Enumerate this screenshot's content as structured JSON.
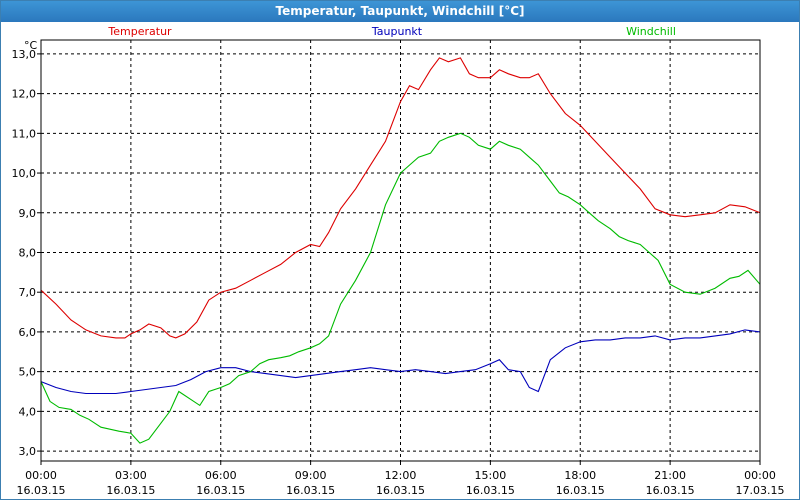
{
  "window": {
    "title": "Temperatur, Taupunkt, Windchill [°C]"
  },
  "chart_data": {
    "type": "line",
    "title": "Temperatur, Taupunkt, Windchill [°C]",
    "ylabel": "°C",
    "ylim": [
      2.75,
      13.35
    ],
    "xlim": [
      0,
      24
    ],
    "grid": true,
    "yticks": [
      "3,0",
      "4,0",
      "5,0",
      "6,0",
      "7,0",
      "8,0",
      "9,0",
      "10,0",
      "11,0",
      "12,0",
      "13,0"
    ],
    "xticks": [
      {
        "time": "00:00",
        "date": "16.03.15",
        "x": 0
      },
      {
        "time": "03:00",
        "date": "16.03.15",
        "x": 3
      },
      {
        "time": "06:00",
        "date": "16.03.15",
        "x": 6
      },
      {
        "time": "09:00",
        "date": "16.03.15",
        "x": 9
      },
      {
        "time": "12:00",
        "date": "16.03.15",
        "x": 12
      },
      {
        "time": "15:00",
        "date": "16.03.15",
        "x": 15
      },
      {
        "time": "18:00",
        "date": "16.03.15",
        "x": 18
      },
      {
        "time": "21:00",
        "date": "16.03.15",
        "x": 21
      },
      {
        "time": "00:00",
        "date": "17.03.15",
        "x": 24
      }
    ],
    "series": [
      {
        "name": "Temperatur",
        "color": "#dd0000",
        "x": [
          0,
          0.5,
          1,
          1.5,
          2,
          2.5,
          2.8,
          3,
          3.3,
          3.6,
          4,
          4.3,
          4.5,
          4.8,
          5.2,
          5.6,
          6,
          6.5,
          7,
          7.5,
          8,
          8.5,
          9,
          9.3,
          9.6,
          10,
          10.5,
          11,
          11.5,
          12,
          12.3,
          12.6,
          13,
          13.3,
          13.6,
          14,
          14.3,
          14.6,
          15,
          15.3,
          15.6,
          16,
          16.3,
          16.6,
          17,
          17.5,
          18,
          18.5,
          19,
          19.5,
          20,
          20.5,
          21,
          21.5,
          22,
          22.5,
          23,
          23.5,
          24
        ],
        "values": [
          7.05,
          6.7,
          6.3,
          6.05,
          5.9,
          5.85,
          5.85,
          5.95,
          6.05,
          6.2,
          6.1,
          5.9,
          5.85,
          5.95,
          6.25,
          6.8,
          7.0,
          7.1,
          7.3,
          7.5,
          7.7,
          8.0,
          8.2,
          8.15,
          8.5,
          9.1,
          9.6,
          10.2,
          10.8,
          11.8,
          12.2,
          12.1,
          12.6,
          12.9,
          12.8,
          12.9,
          12.5,
          12.4,
          12.4,
          12.6,
          12.5,
          12.4,
          12.4,
          12.5,
          12.0,
          11.5,
          11.2,
          10.8,
          10.4,
          10.0,
          9.6,
          9.1,
          8.95,
          8.9,
          8.95,
          9.0,
          9.2,
          9.15,
          9.0
        ]
      },
      {
        "name": "Taupunkt",
        "color": "#0000bb",
        "x": [
          0,
          0.5,
          1,
          1.5,
          2,
          2.5,
          3,
          3.5,
          4,
          4.5,
          5,
          5.5,
          6,
          6.5,
          7,
          7.5,
          8,
          8.5,
          9,
          9.5,
          10,
          10.5,
          11,
          11.5,
          12,
          12.5,
          13,
          13.5,
          14,
          14.5,
          15,
          15.3,
          15.6,
          16,
          16.3,
          16.6,
          17,
          17.5,
          18,
          18.5,
          19,
          19.5,
          20,
          20.5,
          21,
          21.5,
          22,
          22.5,
          23,
          23.5,
          24
        ],
        "values": [
          4.75,
          4.6,
          4.5,
          4.45,
          4.45,
          4.45,
          4.5,
          4.55,
          4.6,
          4.65,
          4.8,
          5.0,
          5.1,
          5.1,
          5.0,
          4.95,
          4.9,
          4.85,
          4.9,
          4.95,
          5.0,
          5.05,
          5.1,
          5.05,
          5.0,
          5.05,
          5.0,
          4.95,
          5.0,
          5.05,
          5.2,
          5.3,
          5.05,
          5.0,
          4.6,
          4.5,
          5.3,
          5.6,
          5.75,
          5.8,
          5.8,
          5.85,
          5.85,
          5.9,
          5.8,
          5.85,
          5.85,
          5.9,
          5.95,
          6.05,
          6.0
        ]
      },
      {
        "name": "Windchill",
        "color": "#00bb00",
        "x": [
          0,
          0.3,
          0.6,
          1,
          1.3,
          1.6,
          2,
          2.3,
          2.6,
          3,
          3.3,
          3.6,
          4,
          4.3,
          4.6,
          5,
          5.3,
          5.6,
          6,
          6.3,
          6.6,
          7,
          7.3,
          7.6,
          8,
          8.3,
          8.6,
          9,
          9.3,
          9.6,
          10,
          10.5,
          11,
          11.5,
          12,
          12.3,
          12.6,
          13,
          13.3,
          13.6,
          14,
          14.3,
          14.6,
          15,
          15.3,
          15.6,
          16,
          16.3,
          16.6,
          17,
          17.3,
          17.6,
          18,
          18.3,
          18.6,
          19,
          19.3,
          19.6,
          20,
          20.3,
          20.6,
          21,
          21.5,
          22,
          22.5,
          23,
          23.3,
          23.6,
          24
        ],
        "values": [
          4.75,
          4.25,
          4.1,
          4.05,
          3.9,
          3.8,
          3.6,
          3.55,
          3.5,
          3.45,
          3.2,
          3.3,
          3.7,
          4.0,
          4.5,
          4.3,
          4.15,
          4.5,
          4.6,
          4.7,
          4.9,
          5.0,
          5.2,
          5.3,
          5.35,
          5.4,
          5.5,
          5.6,
          5.7,
          5.9,
          6.7,
          7.3,
          8.0,
          9.2,
          10.0,
          10.2,
          10.4,
          10.5,
          10.8,
          10.9,
          11.0,
          10.9,
          10.7,
          10.6,
          10.8,
          10.7,
          10.6,
          10.4,
          10.2,
          9.8,
          9.5,
          9.4,
          9.2,
          9.0,
          8.8,
          8.6,
          8.4,
          8.3,
          8.2,
          8.0,
          7.8,
          7.2,
          7.0,
          6.95,
          7.1,
          7.35,
          7.4,
          7.55,
          7.2
        ]
      }
    ]
  }
}
